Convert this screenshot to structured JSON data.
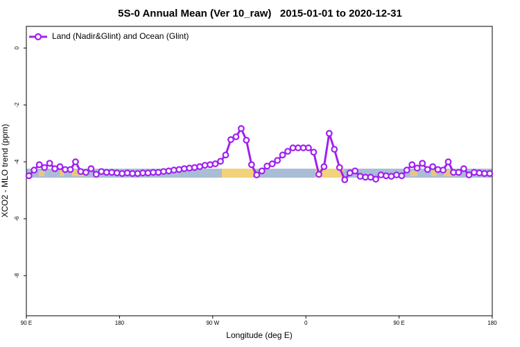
{
  "chart_data": {
    "type": "line",
    "title": "5S-0 Annual Mean (Ver 10_raw)   2015-01-01 to 2020-12-31",
    "xlabel": "Longitude (deg E)",
    "ylabel": "XCO2 - MLO trend (ppm)",
    "x": [
      92.5,
      97.5,
      102.5,
      107.5,
      112.5,
      117.5,
      122.5,
      127.5,
      132.5,
      137.5,
      142.5,
      147.5,
      152.5,
      157.5,
      162.5,
      167.5,
      172.5,
      177.5,
      182.5,
      187.5,
      192.5,
      197.5,
      202.5,
      207.5,
      212.5,
      217.5,
      222.5,
      227.5,
      232.5,
      237.5,
      242.5,
      247.5,
      252.5,
      257.5,
      262.5,
      267.5,
      272.5,
      277.5,
      282.5,
      287.5,
      292.5,
      297.5,
      302.5,
      307.5,
      312.5,
      317.5,
      322.5,
      327.5,
      332.5,
      337.5,
      342.5,
      347.5,
      352.5,
      357.5,
      362.5,
      367.5,
      372.5,
      377.5,
      382.5,
      387.5,
      392.5,
      397.5,
      402.5,
      407.5,
      412.5,
      417.5,
      422.5,
      427.5,
      432.5,
      437.5,
      442.5,
      447.5,
      452.5,
      457.5,
      462.5,
      467.5,
      472.5,
      477.5,
      482.5,
      487.5,
      492.5,
      497.5,
      502.5,
      507.5,
      512.5,
      517.5,
      522.5,
      527.5,
      532.5,
      537.5
    ],
    "series": [
      {
        "name": "Land (Nadir&Glint) and Ocean (Glint)",
        "color": "#a020f0",
        "values": [
          -4.49,
          -4.29,
          -4.1,
          -4.2,
          -4.05,
          -4.24,
          -4.17,
          -4.27,
          -4.27,
          -4.0,
          -4.34,
          -4.37,
          -4.24,
          -4.44,
          -4.34,
          -4.37,
          -4.37,
          -4.39,
          -4.41,
          -4.39,
          -4.41,
          -4.41,
          -4.39,
          -4.39,
          -4.37,
          -4.37,
          -4.34,
          -4.32,
          -4.29,
          -4.27,
          -4.24,
          -4.22,
          -4.2,
          -4.17,
          -4.12,
          -4.1,
          -4.07,
          -3.98,
          -3.76,
          -3.22,
          -3.12,
          -2.83,
          -3.24,
          -4.1,
          -4.46,
          -4.32,
          -4.15,
          -4.07,
          -3.95,
          -3.76,
          -3.63,
          -3.51,
          -3.51,
          -3.51,
          -3.51,
          -3.66,
          -4.44,
          -4.17,
          -3.0,
          -3.56,
          -4.2,
          -4.63,
          -4.39,
          -4.32,
          -4.51,
          -4.54,
          -4.54,
          -4.61,
          -4.46,
          -4.49,
          -4.51,
          -4.46,
          -4.49,
          -4.29,
          -4.1,
          -4.22,
          -4.05,
          -4.27,
          -4.17,
          -4.27,
          -4.29,
          -4.0,
          -4.37,
          -4.37,
          -4.24,
          -4.46,
          -4.37,
          -4.39,
          -4.41,
          -4.41
        ]
      }
    ],
    "xlim": [
      90,
      540
    ],
    "xticks": [
      {
        "value": 90,
        "label": "90 E"
      },
      180,
      {
        "value": 270,
        "label": "90 W"
      },
      {
        "value": 360,
        "label": "0"
      },
      {
        "value": 450,
        "label": "90 E"
      },
      {
        "value": 540,
        "label": "180"
      }
    ],
    "ylim": [
      -9.41,
      0.76
    ],
    "yticks": [
      0,
      -2,
      -4,
      -6,
      -8
    ],
    "legend": "top-left"
  }
}
